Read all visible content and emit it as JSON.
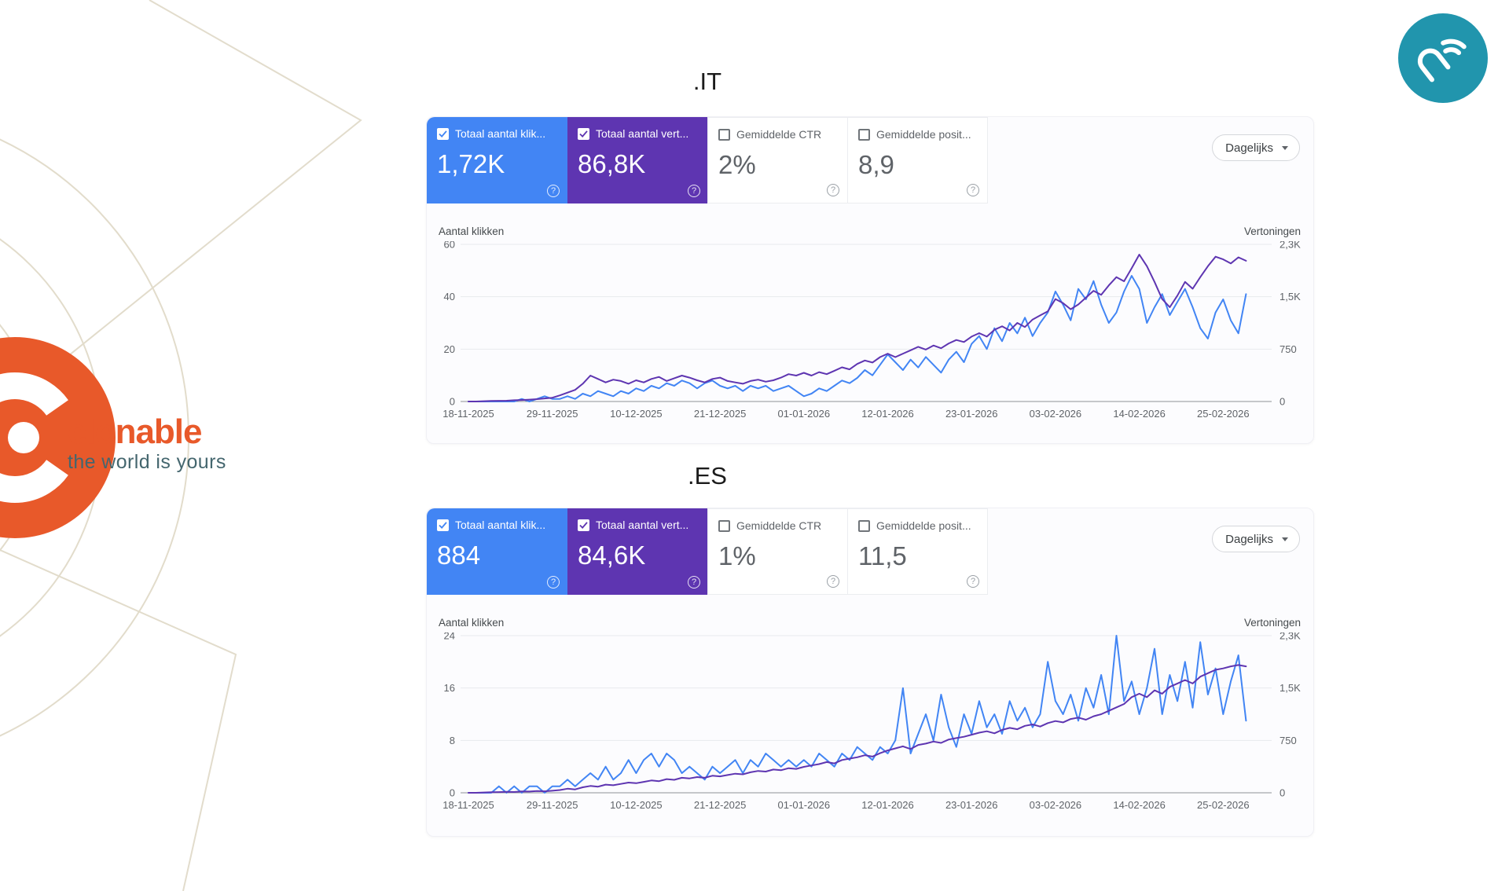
{
  "colors": {
    "clicks_blue": "#4285f4",
    "impressions_purple": "#5e35b1",
    "brand_orange": "#e8592a",
    "brand_tagline_color": "#44666e",
    "partner_teal": "#2195ad"
  },
  "brand": {
    "name": "clonable",
    "tagline": "the world is yours"
  },
  "icons": {
    "help": "?"
  },
  "sections": [
    {
      "title": ".IT",
      "period_label": "Dagelijks",
      "cards": [
        {
          "label": "Totaal aantal klik...",
          "value": "1,72K",
          "checked": true
        },
        {
          "label": "Totaal aantal vert...",
          "value": "86,8K",
          "checked": true
        },
        {
          "label": "Gemiddelde CTR",
          "value": "2%",
          "checked": false
        },
        {
          "label": "Gemiddelde posit...",
          "value": "8,9",
          "checked": false
        }
      ]
    },
    {
      "title": ".ES",
      "period_label": "Dagelijks",
      "cards": [
        {
          "label": "Totaal aantal klik...",
          "value": "884",
          "checked": true
        },
        {
          "label": "Totaal aantal vert...",
          "value": "84,6K",
          "checked": true
        },
        {
          "label": "Gemiddelde CTR",
          "value": "1%",
          "checked": false
        },
        {
          "label": "Gemiddelde posit...",
          "value": "11,5",
          "checked": false
        }
      ]
    }
  ],
  "chart_data": [
    {
      "type": "line",
      "title": ".IT",
      "left_axis": {
        "label": "Aantal klikken",
        "ticks": [
          "0",
          "20",
          "40",
          "60"
        ],
        "max": 60
      },
      "right_axis": {
        "label": "Vertoningen",
        "ticks": [
          "0",
          "750",
          "1,5K",
          "2,3K"
        ],
        "max": 2300
      },
      "x_labels": [
        "18-11-2025",
        "29-11-2025",
        "10-12-2025",
        "21-12-2025",
        "01-01-2026",
        "12-01-2026",
        "23-01-2026",
        "03-02-2026",
        "14-02-2026",
        "25-02-2026"
      ],
      "x_label_day_step": 11,
      "legend_position": "none",
      "grid": true,
      "series": [
        {
          "name": "Totaal aantal klikken",
          "axis": "left",
          "color": "#4285f4",
          "values": [
            0,
            0,
            0,
            0,
            0,
            0,
            0,
            1,
            0,
            1,
            2,
            1,
            1,
            2,
            1,
            3,
            2,
            4,
            3,
            2,
            4,
            3,
            5,
            4,
            6,
            5,
            7,
            6,
            8,
            7,
            5,
            7,
            8,
            6,
            5,
            6,
            4,
            6,
            5,
            6,
            4,
            5,
            6,
            4,
            2,
            3,
            5,
            4,
            6,
            8,
            7,
            9,
            12,
            10,
            14,
            18,
            15,
            12,
            16,
            13,
            17,
            14,
            11,
            16,
            19,
            15,
            22,
            25,
            20,
            28,
            23,
            30,
            26,
            32,
            25,
            30,
            34,
            42,
            37,
            31,
            43,
            39,
            46,
            37,
            30,
            34,
            42,
            48,
            43,
            30,
            36,
            41,
            33,
            38,
            43,
            36,
            28,
            24,
            34,
            39,
            31,
            26,
            41
          ]
        },
        {
          "name": "Totaal aantal vertoningen",
          "axis": "right",
          "color": "#5e35b1",
          "values": [
            0,
            0,
            5,
            8,
            10,
            12,
            18,
            22,
            28,
            35,
            45,
            55,
            90,
            130,
            170,
            260,
            380,
            330,
            280,
            320,
            300,
            260,
            310,
            280,
            330,
            360,
            300,
            340,
            380,
            350,
            310,
            280,
            330,
            350,
            300,
            280,
            260,
            300,
            320,
            290,
            310,
            350,
            400,
            380,
            420,
            380,
            430,
            400,
            450,
            500,
            470,
            550,
            600,
            570,
            650,
            700,
            650,
            700,
            750,
            800,
            760,
            820,
            780,
            850,
            900,
            870,
            950,
            1000,
            950,
            1050,
            1100,
            1040,
            1150,
            1090,
            1200,
            1260,
            1320,
            1500,
            1440,
            1350,
            1420,
            1520,
            1620,
            1560,
            1700,
            1820,
            1760,
            1950,
            2150,
            1980,
            1750,
            1500,
            1380,
            1550,
            1750,
            1650,
            1820,
            1980,
            2120,
            2080,
            2020,
            2110,
            2060
          ]
        }
      ]
    },
    {
      "type": "line",
      "title": ".ES",
      "left_axis": {
        "label": "Aantal klikken",
        "ticks": [
          "0",
          "8",
          "16",
          "24"
        ],
        "max": 24
      },
      "right_axis": {
        "label": "Vertoningen",
        "ticks": [
          "0",
          "750",
          "1,5K",
          "2,3K"
        ],
        "max": 2300
      },
      "x_labels": [
        "18-11-2025",
        "29-11-2025",
        "10-12-2025",
        "21-12-2025",
        "01-01-2026",
        "12-01-2026",
        "23-01-2026",
        "03-02-2026",
        "14-02-2026",
        "25-02-2026"
      ],
      "x_label_day_step": 11,
      "legend_position": "none",
      "grid": true,
      "series": [
        {
          "name": "Totaal aantal klikken",
          "axis": "left",
          "color": "#4285f4",
          "values": [
            0,
            0,
            0,
            0,
            1,
            0,
            1,
            0,
            1,
            1,
            0,
            1,
            1,
            2,
            1,
            2,
            3,
            2,
            4,
            2,
            3,
            5,
            3,
            5,
            6,
            4,
            6,
            5,
            3,
            4,
            3,
            2,
            4,
            3,
            4,
            5,
            3,
            5,
            4,
            6,
            5,
            4,
            5,
            4,
            5,
            4,
            6,
            5,
            4,
            6,
            5,
            7,
            6,
            5,
            7,
            6,
            8,
            16,
            6,
            9,
            12,
            8,
            15,
            10,
            7,
            12,
            9,
            14,
            10,
            12,
            9,
            14,
            11,
            13,
            10,
            12,
            20,
            14,
            12,
            15,
            11,
            16,
            13,
            18,
            12,
            24,
            14,
            17,
            12,
            16,
            22,
            12,
            18,
            14,
            20,
            13,
            23,
            15,
            19,
            12,
            17,
            21,
            11
          ]
        },
        {
          "name": "Totaal aantal vertoningen",
          "axis": "right",
          "color": "#5e35b1",
          "values": [
            0,
            0,
            5,
            8,
            10,
            15,
            12,
            20,
            18,
            25,
            22,
            30,
            40,
            60,
            50,
            80,
            100,
            90,
            120,
            110,
            130,
            150,
            140,
            160,
            180,
            170,
            200,
            190,
            220,
            210,
            230,
            220,
            250,
            240,
            260,
            280,
            270,
            300,
            320,
            310,
            340,
            330,
            360,
            350,
            380,
            400,
            420,
            450,
            430,
            480,
            500,
            520,
            550,
            530,
            580,
            620,
            650,
            680,
            640,
            700,
            720,
            750,
            730,
            780,
            800,
            820,
            850,
            880,
            900,
            870,
            920,
            950,
            930,
            980,
            1000,
            970,
            1020,
            1050,
            1030,
            1080,
            1100,
            1070,
            1120,
            1150,
            1200,
            1250,
            1300,
            1400,
            1450,
            1400,
            1500,
            1450,
            1550,
            1600,
            1650,
            1600,
            1700,
            1750,
            1800,
            1820,
            1850,
            1870,
            1850
          ]
        }
      ]
    }
  ]
}
